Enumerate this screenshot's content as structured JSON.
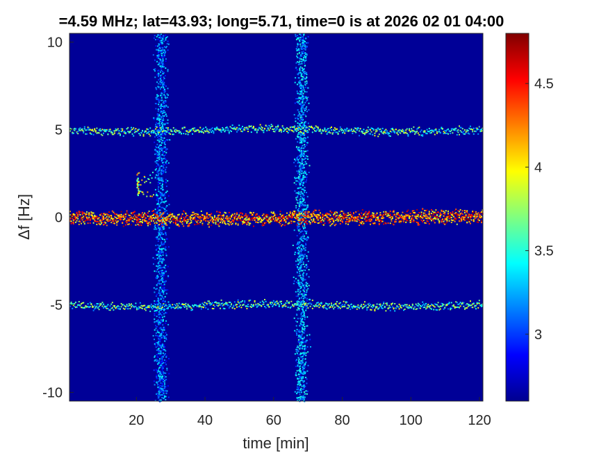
{
  "chart_data": {
    "type": "heatmap",
    "title": "=4.59 MHz;  lat=43.93; long=5.71, time=0 is at 2026 02 01 04:00",
    "xlabel": "time [min]",
    "ylabel": "Δf [Hz]",
    "xlim": [
      0.5,
      121
    ],
    "ylim": [
      -10.5,
      10.5
    ],
    "xticks": [
      20,
      40,
      60,
      80,
      100,
      120
    ],
    "xtick_labels": [
      "20",
      "40",
      "60",
      "80",
      "100",
      "120"
    ],
    "yticks": [
      -10,
      -5,
      0,
      5,
      10
    ],
    "ytick_labels": [
      "-10",
      "-5",
      "0",
      "5",
      "10"
    ],
    "colorbar": {
      "range": [
        2.6,
        4.8
      ],
      "ticks": [
        3,
        3.5,
        4,
        4.5
      ],
      "tick_labels": [
        "3",
        "3.5",
        "4",
        "4.5"
      ],
      "colormap": "jet"
    },
    "background_value": 2.65,
    "features": {
      "horizontal_lines": [
        {
          "y": 0,
          "x_range": [
            0.5,
            121
          ],
          "value": 4.3
        },
        {
          "y": 5,
          "x_range": [
            0.5,
            121
          ],
          "value": 3.6
        },
        {
          "y": -5,
          "x_range": [
            0.5,
            121
          ],
          "value": 3.6
        }
      ],
      "vertical_bands": [
        {
          "x": 27,
          "y_range": [
            -10.5,
            10.5
          ],
          "value": 3.2
        },
        {
          "x": 68,
          "y_range": [
            -10.5,
            10.5
          ],
          "value": 3.3
        }
      ],
      "short_bursts": [
        {
          "x": 20,
          "y_range": [
            1.2,
            2.6
          ],
          "value": 4.0
        }
      ]
    }
  }
}
